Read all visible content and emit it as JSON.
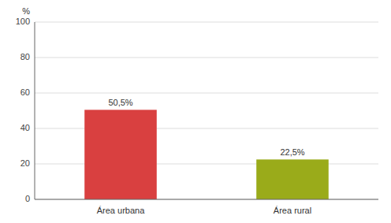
{
  "chart_data": {
    "type": "bar",
    "ylabel": "%",
    "categories": [
      "Área urbana",
      "Área rural"
    ],
    "values": [
      50.5,
      22.5
    ],
    "value_labels": [
      "50,5%",
      "22,5%"
    ],
    "colors": [
      "#d94040",
      "#9aab1a"
    ],
    "ylim": [
      0,
      100
    ],
    "yticks": [
      0,
      20,
      40,
      60,
      80,
      100
    ],
    "grid": true,
    "data_labels": true
  }
}
